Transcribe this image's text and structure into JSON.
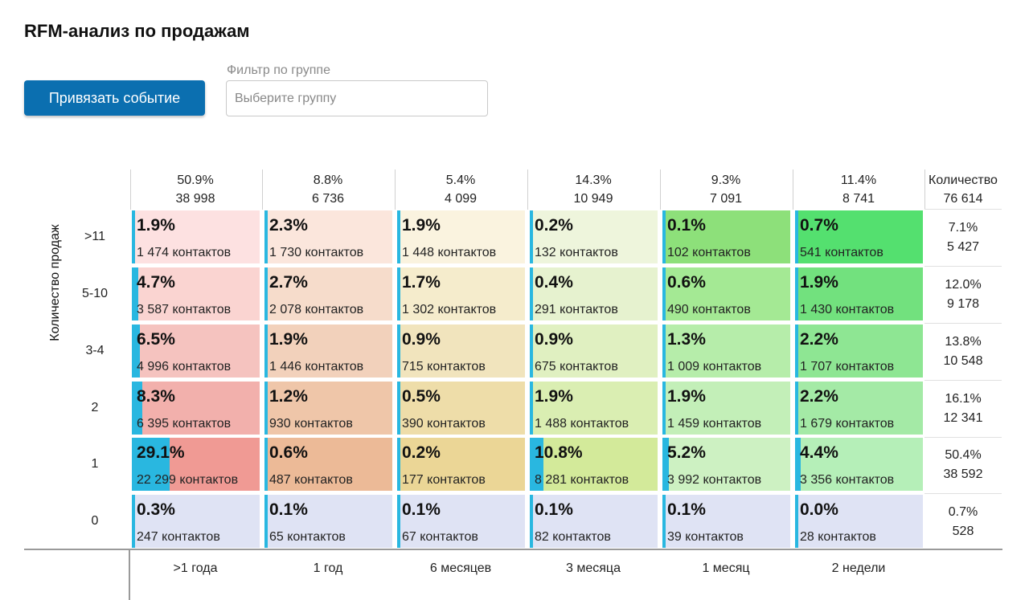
{
  "page": {
    "title": "RFM-анализ по продажам",
    "bind_button": "Привязать событие",
    "filter_label": "Фильтр по группе",
    "filter_placeholder": "Выберите группу"
  },
  "chart_data": {
    "type": "heatmap",
    "title": "RFM-анализ по продажам",
    "ylabel": "Количество продаж",
    "columns": [
      "&gt;1 года",
      "1 год",
      "6 месяцев",
      "3 месяца",
      "1 месяц",
      "2 недели"
    ],
    "column_totals": [
      {
        "pct": "50.9%",
        "count": "38 998"
      },
      {
        "pct": "8.8%",
        "count": "6 736"
      },
      {
        "pct": "5.4%",
        "count": "4 099"
      },
      {
        "pct": "14.3%",
        "count": "10 949"
      },
      {
        "pct": "9.3%",
        "count": "7 091"
      },
      {
        "pct": "11.4%",
        "count": "8 741"
      }
    ],
    "total_header": {
      "label": "Количество",
      "count": "76 614"
    },
    "rows": [
      {
        "label": "&gt;11",
        "total": {
          "pct": "7.1%",
          "count": "5 427"
        },
        "cells": [
          {
            "pct": "1.9%",
            "count": "1 474 контактов",
            "value": 1.9,
            "color": "#fde1e1"
          },
          {
            "pct": "2.3%",
            "count": "1 730 контактов",
            "value": 2.3,
            "color": "#fbe6dc"
          },
          {
            "pct": "1.9%",
            "count": "1 448 контактов",
            "value": 1.9,
            "color": "#faf3df"
          },
          {
            "pct": "0.2%",
            "count": "132 контактов",
            "value": 0.2,
            "color": "#eef5dc"
          },
          {
            "pct": "0.1%",
            "count": "102 контактов",
            "value": 0.1,
            "color": "#8de07a"
          },
          {
            "pct": "0.7%",
            "count": "541 контактов",
            "value": 0.7,
            "color": "#54e06f"
          }
        ]
      },
      {
        "label": "5-10",
        "total": {
          "pct": "12.0%",
          "count": "9 178"
        },
        "cells": [
          {
            "pct": "4.7%",
            "count": "3 587 контактов",
            "value": 4.7,
            "color": "#fad4d1"
          },
          {
            "pct": "2.7%",
            "count": "2 078 контактов",
            "value": 2.7,
            "color": "#f6dccb"
          },
          {
            "pct": "1.7%",
            "count": "1 302 контактов",
            "value": 1.7,
            "color": "#f5eccc"
          },
          {
            "pct": "0.4%",
            "count": "291 контактов",
            "value": 0.4,
            "color": "#e6f2cf"
          },
          {
            "pct": "0.6%",
            "count": "490 контактов",
            "value": 0.6,
            "color": "#a4e994"
          },
          {
            "pct": "1.9%",
            "count": "1 430 контактов",
            "value": 1.9,
            "color": "#72e17e"
          }
        ]
      },
      {
        "label": "3-4",
        "total": {
          "pct": "13.8%",
          "count": "10 548"
        },
        "cells": [
          {
            "pct": "6.5%",
            "count": "4 996 контактов",
            "value": 6.5,
            "color": "#f5c3bf"
          },
          {
            "pct": "1.9%",
            "count": "1 446 контактов",
            "value": 1.9,
            "color": "#f2d1bb"
          },
          {
            "pct": "0.9%",
            "count": "715 контактов",
            "value": 0.9,
            "color": "#f1e4bd"
          },
          {
            "pct": "0.9%",
            "count": "675 контактов",
            "value": 0.9,
            "color": "#e0f0c1"
          },
          {
            "pct": "1.3%",
            "count": "1 009 контактов",
            "value": 1.3,
            "color": "#b6edaa"
          },
          {
            "pct": "2.2%",
            "count": "1 707 контактов",
            "value": 2.2,
            "color": "#8ee693"
          }
        ]
      },
      {
        "label": "2",
        "total": {
          "pct": "16.1%",
          "count": "12 341"
        },
        "cells": [
          {
            "pct": "8.3%",
            "count": "6 395 контактов",
            "value": 8.3,
            "color": "#f2b0ac"
          },
          {
            "pct": "1.2%",
            "count": "930 контактов",
            "value": 1.2,
            "color": "#efc6a9"
          },
          {
            "pct": "0.5%",
            "count": "390 контактов",
            "value": 0.5,
            "color": "#eedda9"
          },
          {
            "pct": "1.9%",
            "count": "1 488 контактов",
            "value": 1.9,
            "color": "#daeeb2"
          },
          {
            "pct": "1.9%",
            "count": "1 459 контактов",
            "value": 1.9,
            "color": "#c3efb8"
          },
          {
            "pct": "2.2%",
            "count": "1 679 контактов",
            "value": 2.2,
            "color": "#a4eaa6"
          }
        ]
      },
      {
        "label": "1",
        "total": {
          "pct": "50.4%",
          "count": "38 592"
        },
        "cells": [
          {
            "pct": "29.1%",
            "count": "22 299 контактов",
            "value": 29.1,
            "color": "#f09a94"
          },
          {
            "pct": "0.6%",
            "count": "487 контактов",
            "value": 0.6,
            "color": "#ecba97"
          },
          {
            "pct": "0.2%",
            "count": "177 контактов",
            "value": 0.2,
            "color": "#ebd696"
          },
          {
            "pct": "10.8%",
            "count": "8 281 контактов",
            "value": 10.8,
            "color": "#d3ea9a"
          },
          {
            "pct": "5.2%",
            "count": "3 992 контактов",
            "value": 5.2,
            "color": "#cdf1c2"
          },
          {
            "pct": "4.4%",
            "count": "3 356 контактов",
            "value": 4.4,
            "color": "#b5efb8"
          }
        ]
      },
      {
        "label": "0",
        "total": {
          "pct": "0.7%",
          "count": "528"
        },
        "cells": [
          {
            "pct": "0.3%",
            "count": "247 контактов",
            "value": 0.3,
            "color": "#dfe3f4"
          },
          {
            "pct": "0.1%",
            "count": "65 контактов",
            "value": 0.1,
            "color": "#dfe3f4"
          },
          {
            "pct": "0.1%",
            "count": "67 контактов",
            "value": 0.1,
            "color": "#dfe3f4"
          },
          {
            "pct": "0.1%",
            "count": "82 контактов",
            "value": 0.1,
            "color": "#dfe3f4"
          },
          {
            "pct": "0.1%",
            "count": "39 контактов",
            "value": 0.1,
            "color": "#dfe3f4"
          },
          {
            "pct": "0.0%",
            "count": "28 контактов",
            "value": 0.0,
            "color": "#dfe3f4"
          }
        ]
      }
    ],
    "bar_color": "#29b7e0"
  }
}
